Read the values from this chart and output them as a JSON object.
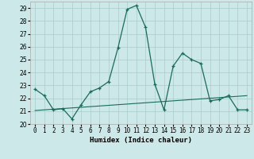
{
  "xlabel": "Humidex (Indice chaleur)",
  "background_color": "#cce8e8",
  "grid_color": "#aacccc",
  "line_color": "#1a6b5a",
  "x_values": [
    0,
    1,
    2,
    3,
    4,
    5,
    6,
    7,
    8,
    9,
    10,
    11,
    12,
    13,
    14,
    15,
    16,
    17,
    18,
    19,
    20,
    21,
    22,
    23
  ],
  "y_main": [
    22.7,
    22.2,
    21.1,
    21.2,
    20.4,
    21.5,
    22.5,
    22.8,
    23.3,
    25.9,
    28.9,
    29.2,
    27.5,
    23.1,
    21.1,
    24.5,
    25.5,
    25.0,
    24.7,
    21.8,
    21.9,
    22.2,
    21.1,
    21.1
  ],
  "y_trend": [
    21.05,
    21.1,
    21.15,
    21.2,
    21.25,
    21.3,
    21.35,
    21.4,
    21.45,
    21.5,
    21.55,
    21.6,
    21.65,
    21.7,
    21.75,
    21.8,
    21.85,
    21.9,
    21.95,
    22.0,
    22.05,
    22.1,
    22.15,
    22.2
  ],
  "ylim": [
    20,
    29.5
  ],
  "yticks": [
    20,
    21,
    22,
    23,
    24,
    25,
    26,
    27,
    28,
    29
  ],
  "xlim": [
    -0.5,
    23.5
  ],
  "tick_fontsize": 5.5,
  "label_fontsize": 6.5
}
